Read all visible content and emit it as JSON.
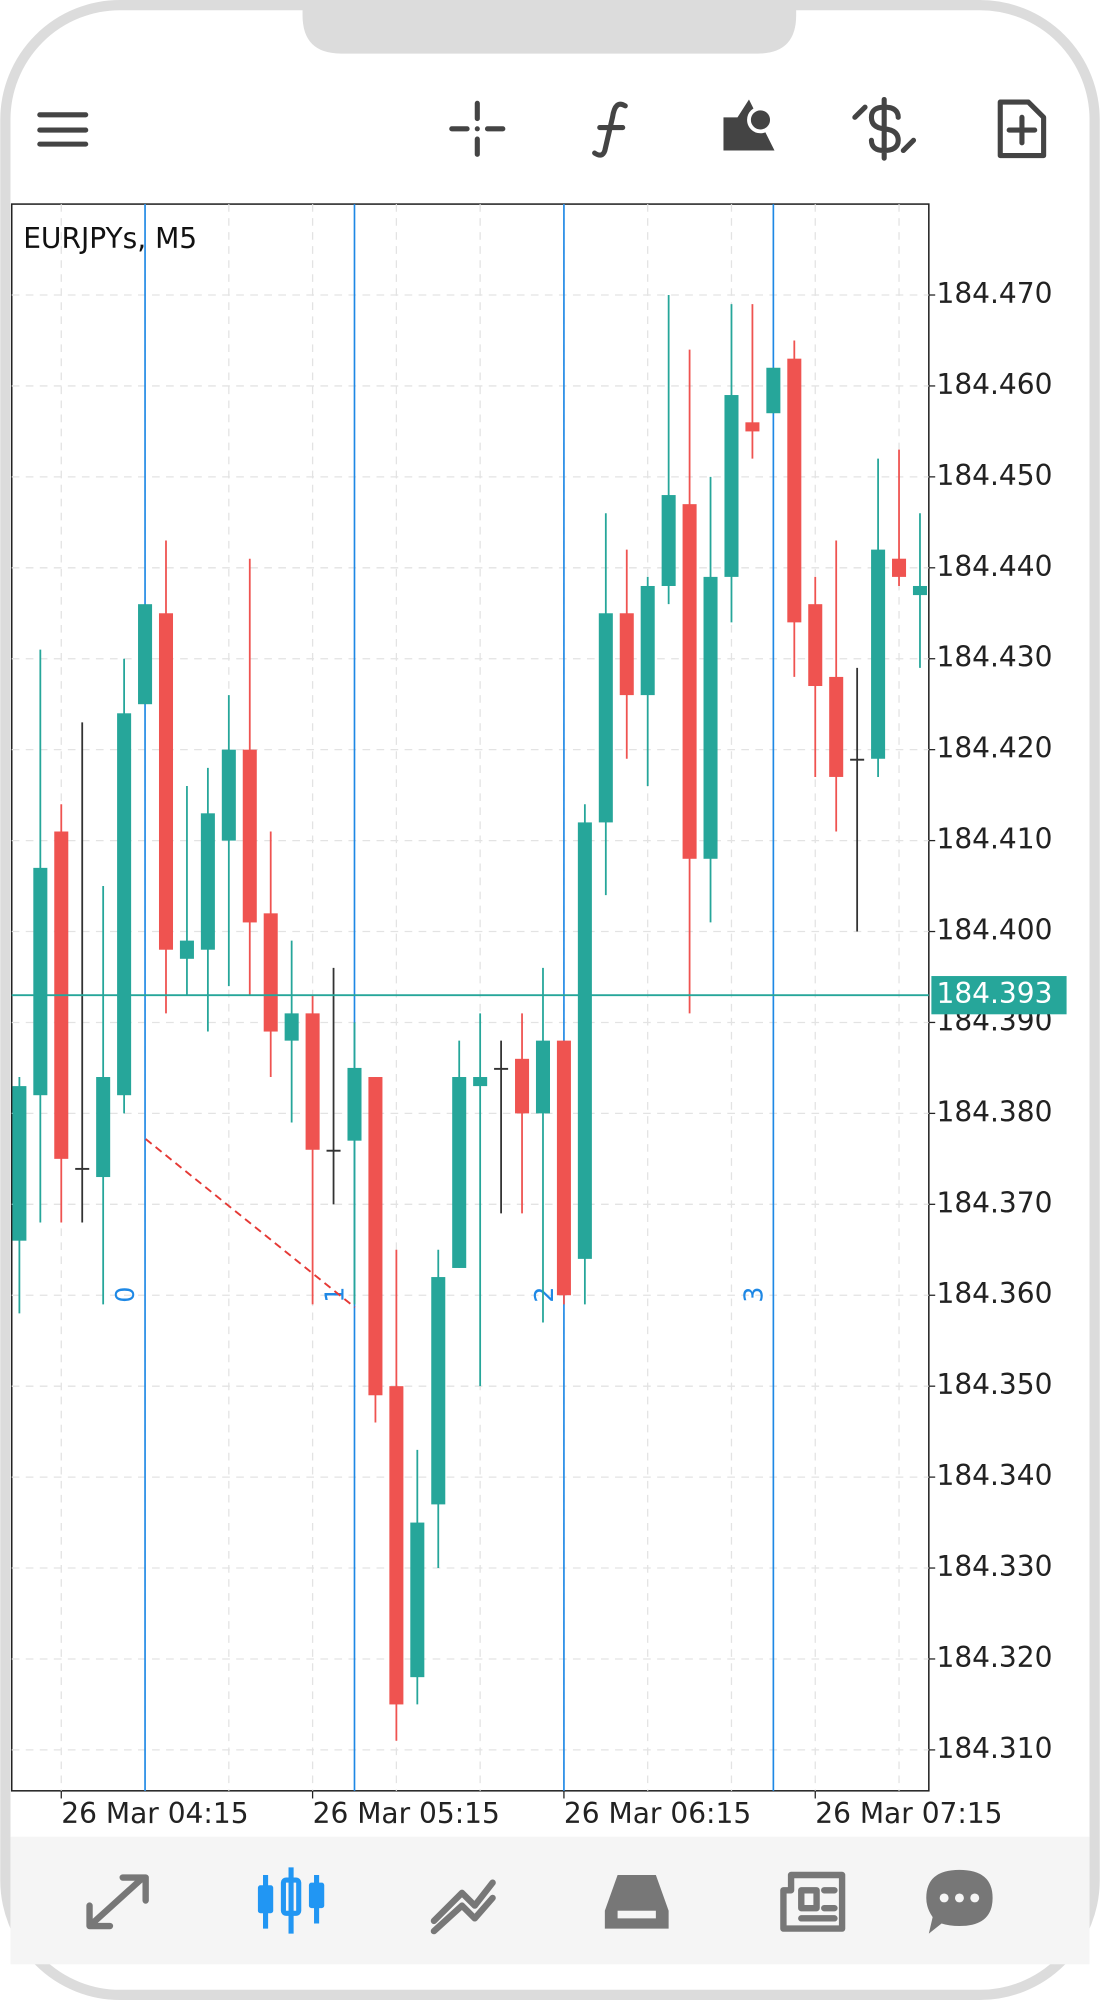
{
  "chart_data": {
    "type": "candlestick",
    "title": "EURJPYs, M5",
    "categories": [
      null,
      null,
      "26 Mar 04:15",
      null,
      null,
      null,
      null,
      null,
      null,
      null,
      null,
      null,
      null,
      null,
      "26 Mar 05:15",
      null,
      null,
      null,
      null,
      null,
      null,
      null,
      null,
      null,
      null,
      null,
      "26 Mar 06:15",
      null,
      null,
      null,
      null,
      null,
      null,
      null,
      null,
      null,
      null,
      null,
      "26 Mar 07:15",
      null,
      null,
      null,
      null,
      null
    ],
    "open": [
      184.366,
      184.382,
      184.411,
      184.374,
      184.373,
      184.382,
      184.425,
      184.435,
      184.397,
      184.398,
      184.41,
      184.42,
      184.402,
      184.388,
      184.391,
      184.376,
      184.377,
      184.384,
      184.35,
      184.318,
      184.337,
      184.363,
      184.383,
      184.385,
      184.386,
      184.38,
      184.388,
      184.364,
      184.412,
      184.435,
      184.426,
      184.438,
      184.447,
      184.408,
      184.439,
      184.456,
      184.457,
      184.463,
      184.436,
      184.428,
      184.419,
      184.419,
      184.441,
      184.437
    ],
    "high": [
      184.384,
      184.431,
      184.414,
      184.423,
      184.405,
      184.43,
      184.436,
      184.443,
      184.416,
      184.418,
      184.426,
      184.441,
      184.411,
      184.399,
      184.393,
      184.396,
      184.39,
      184.384,
      184.365,
      184.343,
      184.365,
      184.388,
      184.391,
      184.388,
      184.391,
      184.396,
      184.388,
      184.414,
      184.446,
      184.442,
      184.439,
      184.47,
      184.464,
      184.45,
      184.469,
      184.469,
      184.462,
      184.465,
      184.439,
      184.443,
      184.429,
      184.452,
      184.453,
      184.446
    ],
    "low": [
      184.358,
      184.368,
      184.368,
      184.368,
      184.359,
      184.38,
      184.425,
      184.391,
      184.393,
      184.389,
      184.394,
      184.393,
      184.384,
      184.379,
      184.359,
      184.37,
      184.359,
      184.346,
      184.311,
      184.315,
      184.33,
      184.363,
      184.35,
      184.369,
      184.369,
      184.357,
      184.359,
      184.359,
      184.404,
      184.419,
      184.416,
      184.436,
      184.391,
      184.401,
      184.434,
      184.452,
      184.457,
      184.428,
      184.417,
      184.411,
      184.4,
      184.417,
      184.438,
      184.429
    ],
    "close": [
      184.383,
      184.407,
      184.375,
      184.374,
      184.384,
      184.424,
      184.436,
      184.398,
      184.399,
      184.413,
      184.42,
      184.401,
      184.389,
      184.391,
      184.376,
      184.376,
      184.385,
      184.349,
      184.315,
      184.335,
      184.362,
      184.384,
      184.384,
      184.385,
      184.38,
      184.388,
      184.36,
      184.412,
      184.435,
      184.426,
      184.438,
      184.448,
      184.408,
      184.439,
      184.459,
      184.455,
      184.462,
      184.434,
      184.427,
      184.417,
      184.419,
      184.442,
      184.439,
      184.438
    ],
    "up_color": "#26a69a",
    "down_color": "#ef5350",
    "flat_color": "#333333",
    "ylim": [
      184.3055,
      184.48
    ],
    "yticks": [
      {
        "value": 184.31,
        "label": "184.310"
      },
      {
        "value": 184.32,
        "label": "184.320"
      },
      {
        "value": 184.33,
        "label": "184.330"
      },
      {
        "value": 184.34,
        "label": "184.340"
      },
      {
        "value": 184.35,
        "label": "184.350"
      },
      {
        "value": 184.36,
        "label": "184.360"
      },
      {
        "value": 184.37,
        "label": "184.370"
      },
      {
        "value": 184.38,
        "label": "184.380"
      },
      {
        "value": 184.39,
        "label": "184.390"
      },
      {
        "value": 184.4,
        "label": "184.400"
      },
      {
        "value": 184.41,
        "label": "184.410"
      },
      {
        "value": 184.42,
        "label": "184.420"
      },
      {
        "value": 184.43,
        "label": "184.430"
      },
      {
        "value": 184.44,
        "label": "184.440"
      },
      {
        "value": 184.45,
        "label": "184.450"
      },
      {
        "value": 184.46,
        "label": "184.460"
      },
      {
        "value": 184.47,
        "label": "184.470"
      }
    ],
    "current_price": 184.393,
    "time_zones": [
      0,
      1,
      2,
      3
    ],
    "grid": true
  }
}
